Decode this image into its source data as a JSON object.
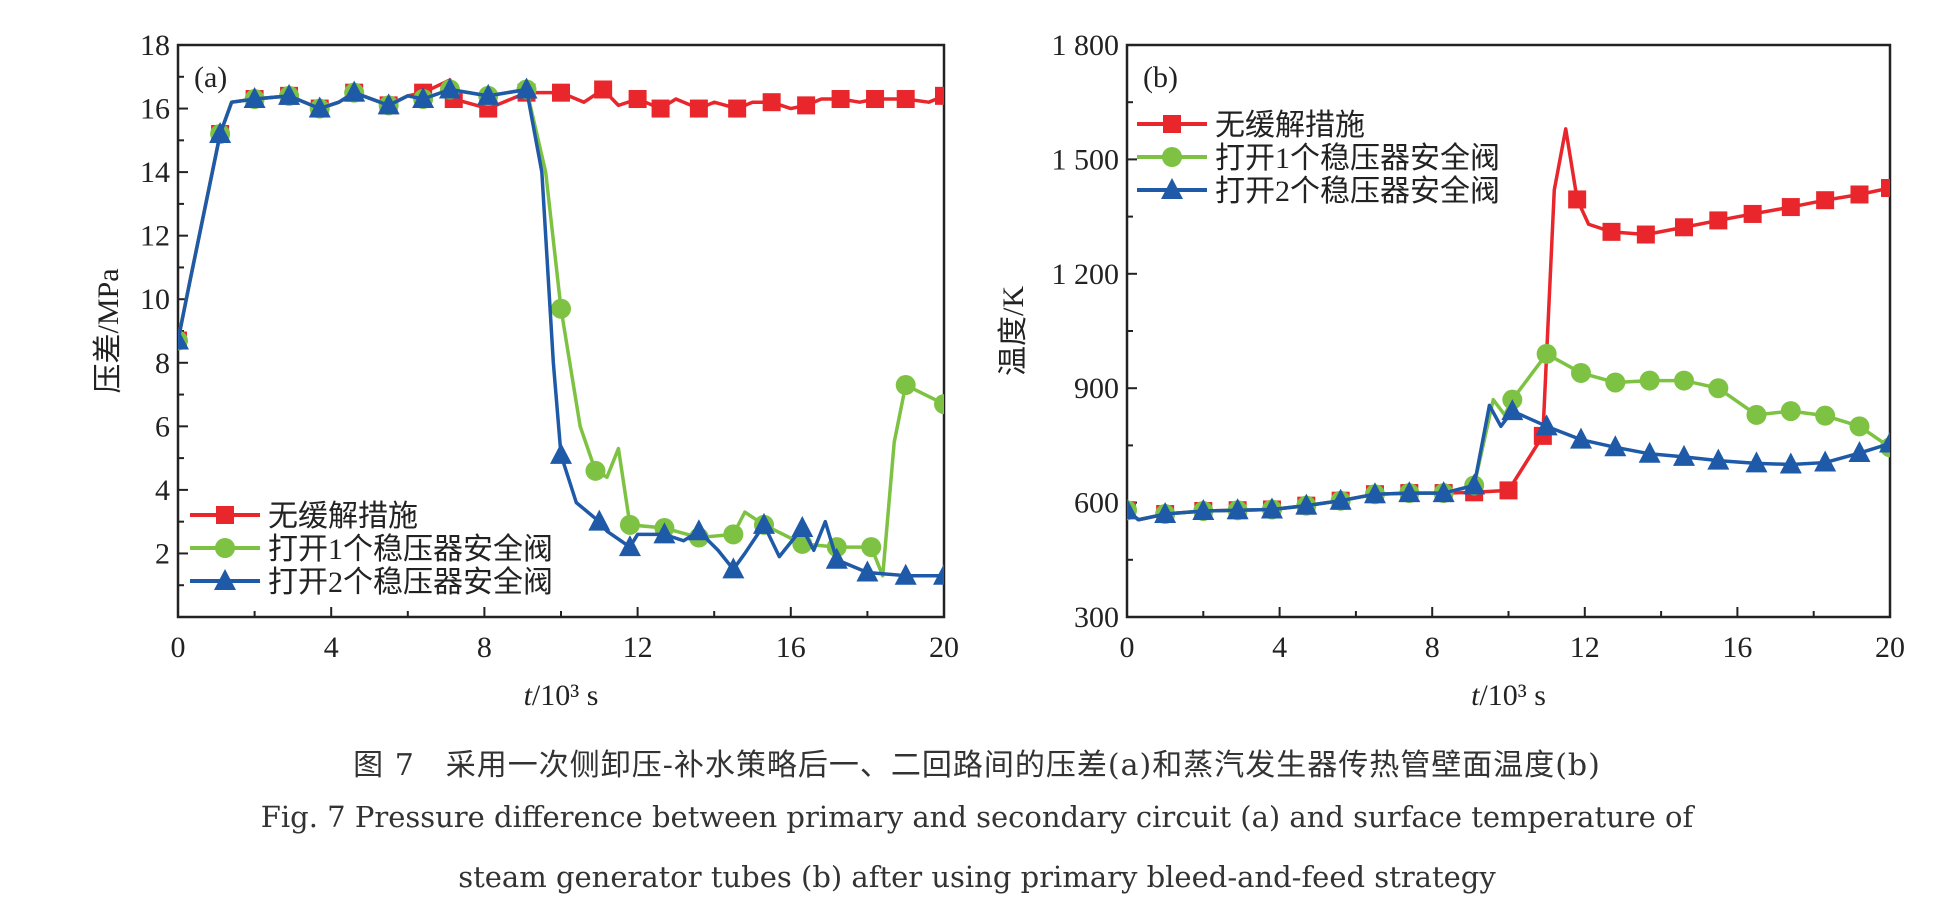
{
  "chart_data": [
    {
      "type": "line",
      "panel_label": "(a)",
      "title": "",
      "xlabel_italic": "t",
      "xlabel_rest": "/10³ s",
      "ylabel": "压差/MPa",
      "xlim": [
        0,
        20
      ],
      "ylim": [
        0,
        18
      ],
      "xticks": [
        0,
        4,
        8,
        12,
        16,
        20
      ],
      "xtick_labels": [
        "0",
        "4",
        "8",
        "12",
        "16",
        "20"
      ],
      "yticks": [
        2,
        4,
        6,
        8,
        10,
        12,
        14,
        16,
        18
      ],
      "ytick_labels": [
        "2",
        "4",
        "6",
        "8",
        "10",
        "12",
        "14",
        "16",
        "18"
      ],
      "minor_x": [
        2,
        6,
        10,
        14,
        18
      ],
      "minor_y": [
        1,
        3,
        5,
        7,
        9,
        11,
        13,
        15,
        17
      ],
      "grid": false,
      "legend_position": "bottom-left",
      "series": [
        {
          "name": "无缓解措施",
          "color": "#e8262b",
          "marker": "square",
          "x": [
            0,
            0.3,
            1.1,
            1.4,
            2,
            2.9,
            3.7,
            4.2,
            4.6,
            5.5,
            6,
            6.4,
            7.1,
            7.2,
            8.1,
            9.1,
            10,
            10.6,
            11.1,
            11.5,
            12,
            12.6,
            13,
            13.6,
            14,
            14.6,
            15,
            15.5,
            16,
            16.4,
            16.8,
            17.3,
            17.8,
            18.2,
            19,
            19.6,
            20
          ],
          "y": [
            8.7,
            10.5,
            15.2,
            16.2,
            16.3,
            16.4,
            16,
            16.2,
            16.5,
            16.1,
            16.4,
            16.5,
            16.9,
            16.3,
            16.0,
            16.5,
            16.5,
            16.2,
            16.6,
            16.1,
            16.3,
            16.0,
            16.3,
            16.0,
            16.2,
            16.0,
            16.2,
            16.2,
            16.0,
            16.1,
            16.3,
            16.3,
            16.2,
            16.3,
            16.3,
            16.2,
            16.4
          ],
          "markers": [
            1,
            0,
            1,
            0,
            1,
            1,
            1,
            0,
            1,
            1,
            0,
            1,
            0,
            1,
            1,
            1,
            1,
            0,
            1,
            0,
            1,
            1,
            0,
            1,
            0,
            1,
            0,
            1,
            0,
            1,
            0,
            1,
            0,
            1,
            1,
            0,
            1
          ]
        },
        {
          "name": "打开1个稳压器安全阀",
          "color": "#7dc242",
          "marker": "circle",
          "x": [
            0,
            0.3,
            1.1,
            1.4,
            2,
            2.9,
            3.7,
            4.2,
            4.6,
            5.5,
            6,
            6.4,
            7.1,
            8.1,
            9.1,
            9.6,
            10,
            10.5,
            10.9,
            11.2,
            11.5,
            11.8,
            12.7,
            13.6,
            14.5,
            14.8,
            15.3,
            16.3,
            17.2,
            18.1,
            18.4,
            18.7,
            19,
            20
          ],
          "y": [
            8.7,
            10.5,
            15.2,
            16.2,
            16.3,
            16.4,
            16,
            16.2,
            16.5,
            16.1,
            16.4,
            16.3,
            16.6,
            16.4,
            16.6,
            14,
            9.7,
            6,
            4.6,
            4.4,
            5.3,
            2.9,
            2.8,
            2.5,
            2.6,
            3.3,
            2.9,
            2.3,
            2.2,
            2.2,
            1.3,
            5.5,
            7.3,
            6.7
          ],
          "markers": [
            1,
            0,
            1,
            0,
            1,
            1,
            1,
            0,
            1,
            1,
            0,
            1,
            1,
            1,
            1,
            0,
            1,
            0,
            1,
            0,
            0,
            1,
            1,
            1,
            1,
            0,
            1,
            1,
            1,
            1,
            0,
            0,
            1,
            1
          ]
        },
        {
          "name": "打开2个稳压器安全阀",
          "color": "#1f5aa8",
          "marker": "triangle",
          "x": [
            0,
            0.3,
            1.1,
            1.4,
            2,
            2.9,
            3.7,
            4.2,
            4.6,
            5.5,
            6,
            6.4,
            7.1,
            8.1,
            9.1,
            9.5,
            9.8,
            10,
            10.4,
            11,
            11.2,
            11.8,
            12,
            12.7,
            13.2,
            13.6,
            14.1,
            14.5,
            14.8,
            15.3,
            15.7,
            16.3,
            16.6,
            16.9,
            17.2,
            18,
            19,
            20
          ],
          "y": [
            8.7,
            10.5,
            15.2,
            16.2,
            16.3,
            16.4,
            16,
            16.2,
            16.5,
            16.1,
            16.4,
            16.3,
            16.6,
            16.4,
            16.6,
            14,
            8,
            5.1,
            3.6,
            3,
            2.7,
            2.2,
            2.6,
            2.6,
            2.4,
            2.7,
            2.1,
            1.5,
            2,
            2.9,
            1.9,
            2.8,
            2.1,
            3,
            1.8,
            1.4,
            1.3,
            1.3
          ],
          "markers": [
            1,
            0,
            1,
            0,
            1,
            1,
            1,
            0,
            1,
            1,
            0,
            1,
            1,
            1,
            1,
            0,
            0,
            1,
            0,
            1,
            0,
            1,
            0,
            1,
            0,
            1,
            0,
            1,
            0,
            1,
            0,
            1,
            0,
            0,
            1,
            1,
            1,
            1
          ]
        }
      ]
    },
    {
      "type": "line",
      "panel_label": "(b)",
      "title": "",
      "xlabel_italic": "t",
      "xlabel_rest": "/10³ s",
      "ylabel": "温度/K",
      "xlim": [
        0,
        20
      ],
      "ylim": [
        300,
        1800
      ],
      "xticks": [
        0,
        4,
        8,
        12,
        16,
        20
      ],
      "xtick_labels": [
        "0",
        "4",
        "8",
        "12",
        "16",
        "20"
      ],
      "yticks": [
        300,
        600,
        900,
        1200,
        1500,
        1800
      ],
      "ytick_labels": [
        "300",
        "600",
        "900",
        "1 200",
        "1 500",
        "1 800"
      ],
      "minor_x": [
        2,
        6,
        10,
        14,
        18
      ],
      "minor_y": [
        450,
        750,
        1050,
        1350,
        1650
      ],
      "grid": false,
      "legend_position": "top-left",
      "series": [
        {
          "name": "无缓解措施",
          "color": "#e8262b",
          "marker": "square",
          "x": [
            0,
            0.3,
            1,
            2,
            2.9,
            3.8,
            4.7,
            5.6,
            6.5,
            7.4,
            8.3,
            9.1,
            10,
            10.9,
            11.2,
            11.5,
            11.8,
            12.1,
            12.7,
            13.6,
            14.6,
            15.5,
            16.4,
            17.4,
            18.3,
            19.2,
            20
          ],
          "y": [
            580,
            555,
            570,
            578,
            580,
            582,
            592,
            605,
            622,
            625,
            625,
            627,
            632,
            775,
            1420,
            1580,
            1395,
            1330,
            1310,
            1303,
            1322,
            1340,
            1357,
            1375,
            1393,
            1408,
            1425
          ],
          "markers": [
            1,
            0,
            1,
            1,
            1,
            1,
            1,
            1,
            1,
            1,
            1,
            1,
            1,
            1,
            0,
            0,
            1,
            0,
            1,
            1,
            1,
            1,
            1,
            1,
            1,
            1,
            1
          ]
        },
        {
          "name": "打开1个稳压器安全阀",
          "color": "#7dc242",
          "marker": "circle",
          "x": [
            0,
            0.3,
            1,
            2,
            2.9,
            3.8,
            4.7,
            5.6,
            6.5,
            7.4,
            8.3,
            9.1,
            9.6,
            9.9,
            10.1,
            11,
            11.9,
            12.8,
            13.7,
            14.6,
            15.5,
            16.5,
            17.4,
            18.3,
            19.2,
            20
          ],
          "y": [
            580,
            555,
            570,
            578,
            580,
            582,
            592,
            605,
            622,
            625,
            625,
            645,
            870,
            830,
            870,
            990,
            940,
            915,
            920,
            920,
            900,
            830,
            840,
            828,
            800,
            745
          ],
          "markers": [
            1,
            0,
            1,
            1,
            1,
            1,
            1,
            1,
            1,
            1,
            1,
            1,
            0,
            0,
            1,
            1,
            1,
            1,
            1,
            1,
            1,
            1,
            1,
            1,
            1,
            1
          ]
        },
        {
          "name": "打开2个稳压器安全阀",
          "color": "#1f5aa8",
          "marker": "triangle",
          "x": [
            0,
            0.3,
            1,
            2,
            2.9,
            3.8,
            4.7,
            5.6,
            6.5,
            7.4,
            8.3,
            9.1,
            9.5,
            9.8,
            10.1,
            11,
            11.9,
            12.8,
            13.7,
            14.6,
            15.5,
            16.5,
            17.4,
            18.3,
            19.2,
            20
          ],
          "y": [
            580,
            555,
            570,
            578,
            580,
            582,
            592,
            605,
            622,
            625,
            625,
            645,
            855,
            800,
            840,
            800,
            765,
            745,
            728,
            720,
            710,
            703,
            700,
            705,
            730,
            755
          ],
          "markers": [
            1,
            0,
            1,
            1,
            1,
            1,
            1,
            1,
            1,
            1,
            1,
            1,
            0,
            0,
            1,
            1,
            1,
            1,
            1,
            1,
            1,
            1,
            1,
            1,
            1,
            1
          ]
        }
      ]
    }
  ],
  "caption": {
    "zh": "图 7　采用一次侧卸压-补水策略后一、二回路间的压差(a)和蒸汽发生器传热管壁面温度(b)",
    "en_line1": "Fig. 7  Pressure difference between primary and secondary circuit (a) and surface temperature of",
    "en_line2": "steam generator tubes (b) after using primary bleed-and-feed strategy"
  }
}
